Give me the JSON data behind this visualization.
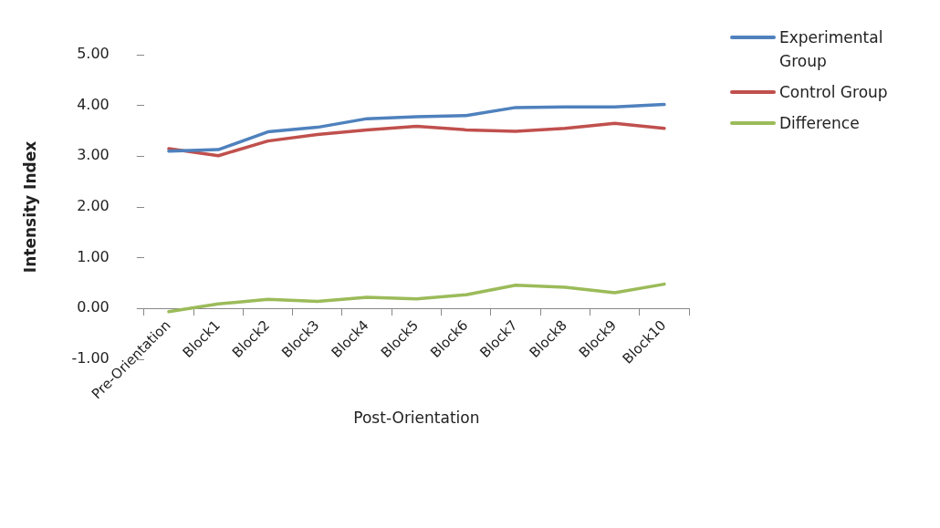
{
  "chart_data": {
    "type": "line",
    "xlabel": "Post-Orientation",
    "ylabel": "Intensity Index",
    "categories": [
      "Pre-Orientation",
      "Block1",
      "Block2",
      "Block3",
      "Block4",
      "Block5",
      "Block6",
      "Block7",
      "Block8",
      "Block9",
      "Block10"
    ],
    "series": [
      {
        "name": "Experimental Group",
        "color": "#4f81bd",
        "values": [
          3.1,
          3.13,
          3.48,
          3.57,
          3.74,
          3.78,
          3.8,
          3.96,
          3.97,
          3.97,
          4.02
        ]
      },
      {
        "name": "Control Group",
        "color": "#c0504d",
        "values": [
          3.15,
          3.01,
          3.3,
          3.43,
          3.52,
          3.59,
          3.52,
          3.49,
          3.55,
          3.65,
          3.55
        ]
      },
      {
        "name": "Difference",
        "color": "#9bbb59",
        "values": [
          -0.06,
          0.09,
          0.18,
          0.14,
          0.22,
          0.19,
          0.27,
          0.46,
          0.42,
          0.31,
          0.48
        ]
      }
    ],
    "ylim": [
      -1,
      5
    ],
    "yticks": [
      {
        "value": -1,
        "label": "-1.00"
      },
      {
        "value": 0,
        "label": "0.00"
      },
      {
        "value": 1,
        "label": "1.00"
      },
      {
        "value": 2,
        "label": "2.00"
      },
      {
        "value": 3,
        "label": "3.00"
      },
      {
        "value": 4,
        "label": "4.00"
      },
      {
        "value": 5,
        "label": "5.00"
      }
    ],
    "grid": false,
    "legend": "right",
    "marker": "none",
    "line_style": "solid"
  }
}
